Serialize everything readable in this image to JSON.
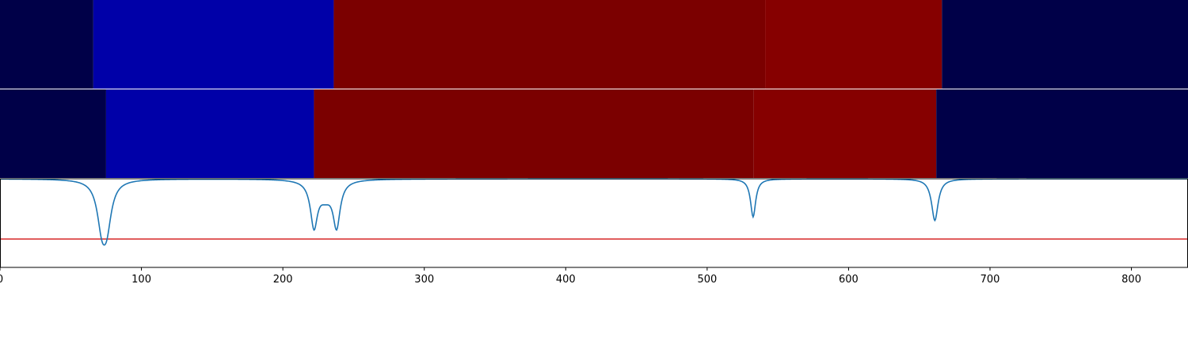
{
  "chart_data": {
    "type": "heatmap",
    "title": "",
    "xlabel": "",
    "ylabel": "",
    "xlim": [
      0,
      840
    ],
    "grid": false,
    "legend": "none",
    "x_ticks": [
      0,
      100,
      200,
      300,
      400,
      500,
      600,
      700,
      800
    ],
    "colors": {
      "c0": "#000048",
      "c1": "#0000a8",
      "c2": "#7b0000",
      "c3": "#860000",
      "line": "#1f77b4",
      "threshold": "#d62728"
    },
    "segment_rows": [
      {
        "name": "",
        "segments": [
          {
            "x0": 0,
            "x1": 66,
            "color": "c0"
          },
          {
            "x0": 66,
            "x1": 236,
            "color": "c1"
          },
          {
            "x0": 236,
            "x1": 541,
            "color": "c2"
          },
          {
            "x0": 541,
            "x1": 666,
            "color": "c3"
          },
          {
            "x0": 666,
            "x1": 840,
            "color": "c0"
          }
        ]
      },
      {
        "name": "",
        "segments": [
          {
            "x0": 0,
            "x1": 75,
            "color": "c0"
          },
          {
            "x0": 75,
            "x1": 222,
            "color": "c1"
          },
          {
            "x0": 222,
            "x1": 533,
            "color": "c2"
          },
          {
            "x0": 533,
            "x1": 662,
            "color": "c3"
          },
          {
            "x0": 662,
            "x1": 840,
            "color": "c0"
          }
        ]
      }
    ],
    "signal": {
      "ylim": [
        0,
        1
      ],
      "threshold": 0.32,
      "baseline": 1.0,
      "dips": [
        {
          "center": 72,
          "depth": 0.45,
          "width": 4.0
        },
        {
          "center": 75.5,
          "depth": 0.44,
          "width": 4.0
        },
        {
          "center": 222,
          "depth": 0.5,
          "width": 3.0
        },
        {
          "center": 238,
          "depth": 0.5,
          "width": 3.0
        },
        {
          "center": 230,
          "depth": 0.17,
          "width": 6.0
        },
        {
          "center": 532.5,
          "depth": 0.43,
          "width": 2.2
        },
        {
          "center": 661,
          "depth": 0.47,
          "width": 2.8
        }
      ]
    }
  }
}
